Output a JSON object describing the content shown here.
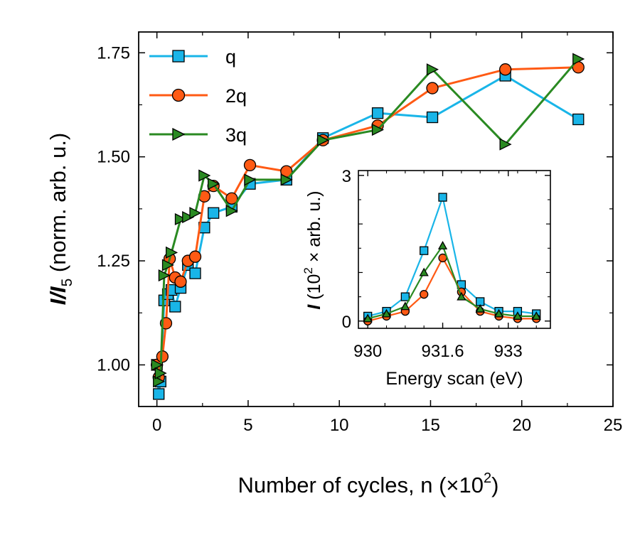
{
  "chart_data": [
    {
      "type": "line",
      "xlabel": "Number of cycles, n (×10",
      "xlabel_sup": "2",
      "xlabel_end": ")",
      "ylabel_parts": [
        "I",
        "/",
        "I",
        "5",
        " (norm. arb. u.)"
      ],
      "xlim": [
        -1,
        25
      ],
      "ylim": [
        0.9,
        1.8
      ],
      "xticks": [
        0,
        5,
        10,
        15,
        20,
        25
      ],
      "xtick_labels": [
        "0",
        "5",
        "10",
        "15",
        "20",
        "25"
      ],
      "yticks": [
        1.0,
        1.25,
        1.5,
        1.75
      ],
      "ytick_labels": [
        "1.00",
        "1.25",
        "1.50",
        "1.75"
      ],
      "legend_position": "top-left",
      "series": [
        {
          "name": "q",
          "color": "#19b5e8",
          "marker": "square",
          "x": [
            0.0,
            0.1,
            0.2,
            0.4,
            0.6,
            0.8,
            1.0,
            1.3,
            1.7,
            2.1,
            2.6,
            3.1,
            4.1,
            5.1,
            7.1,
            9.1,
            12.1,
            15.1,
            19.1,
            23.1
          ],
          "y": [
            1.0,
            0.93,
            0.96,
            1.155,
            1.17,
            1.18,
            1.14,
            1.185,
            1.24,
            1.22,
            1.33,
            1.365,
            1.38,
            1.435,
            1.445,
            1.545,
            1.605,
            1.595,
            1.695,
            1.59
          ]
        },
        {
          "name": "2q",
          "color": "#ff5a14",
          "marker": "circle",
          "x": [
            0.0,
            0.1,
            0.3,
            0.5,
            0.7,
            1.0,
            1.3,
            1.7,
            2.1,
            2.6,
            3.1,
            4.1,
            5.1,
            7.1,
            9.1,
            12.1,
            15.1,
            19.1,
            23.1
          ],
          "y": [
            1.0,
            0.97,
            1.02,
            1.1,
            1.255,
            1.21,
            1.2,
            1.25,
            1.26,
            1.405,
            1.43,
            1.4,
            1.48,
            1.465,
            1.54,
            1.575,
            1.665,
            1.71,
            1.715
          ]
        },
        {
          "name": "3q",
          "color": "#2a8a22",
          "marker": "triangle-right",
          "x": [
            0.0,
            0.1,
            0.2,
            0.4,
            0.6,
            0.8,
            1.3,
            1.7,
            2.1,
            2.6,
            3.1,
            4.1,
            5.1,
            7.1,
            9.1,
            12.1,
            15.1,
            19.1,
            23.1
          ],
          "y": [
            1.0,
            0.96,
            0.98,
            1.215,
            1.24,
            1.27,
            1.35,
            1.355,
            1.365,
            1.455,
            1.435,
            1.37,
            1.445,
            1.445,
            1.54,
            1.565,
            1.71,
            1.53,
            1.735
          ]
        }
      ]
    },
    {
      "type": "line",
      "xlabel": "Energy scan (eV)",
      "ylabel_parts": [
        "I",
        " (10",
        "2",
        " × arb. u.)"
      ],
      "xlim": [
        929.8,
        933.9
      ],
      "ylim": [
        -0.15,
        3.1
      ],
      "xticks": [
        930,
        931.6,
        933
      ],
      "xtick_labels": [
        "930",
        "931.6",
        "933"
      ],
      "yticks": [
        0,
        3
      ],
      "ytick_labels": [
        "0",
        "3"
      ],
      "series": [
        {
          "name": "q",
          "color": "#19b5e8",
          "marker": "square",
          "x": [
            930.0,
            930.4,
            930.8,
            931.2,
            931.6,
            932.0,
            932.4,
            932.8,
            933.2,
            933.6
          ],
          "y": [
            0.1,
            0.2,
            0.5,
            1.45,
            2.55,
            0.75,
            0.4,
            0.2,
            0.2,
            0.15
          ]
        },
        {
          "name": "2q",
          "color": "#ff5a14",
          "marker": "circle",
          "x": [
            930.0,
            930.4,
            930.8,
            931.2,
            931.6,
            932.0,
            932.4,
            932.8,
            933.2,
            933.6
          ],
          "y": [
            0.0,
            0.1,
            0.2,
            0.55,
            1.3,
            0.6,
            0.2,
            0.1,
            0.05,
            0.05
          ]
        },
        {
          "name": "3q",
          "color": "#2a8a22",
          "marker": "triangle-up",
          "x": [
            930.0,
            930.4,
            930.8,
            931.2,
            931.6,
            932.0,
            932.4,
            932.8,
            933.2,
            933.6
          ],
          "y": [
            0.05,
            0.15,
            0.3,
            1.0,
            1.55,
            0.5,
            0.25,
            0.15,
            0.1,
            0.1
          ]
        }
      ]
    }
  ]
}
